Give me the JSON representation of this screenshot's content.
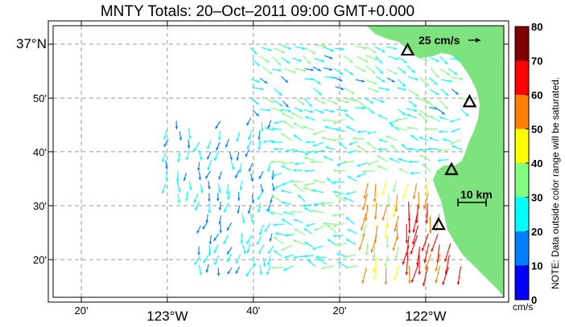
{
  "title": "MNTY Totals: 20–Oct–2011 09:00 GMT+0.000",
  "lat_labels": [
    {
      "text": "37°N",
      "lat": 37.0,
      "big": true
    },
    {
      "text": "50'",
      "lat": 36.833,
      "big": false
    },
    {
      "text": "40'",
      "lat": 36.667,
      "big": false
    },
    {
      "text": "30'",
      "lat": 36.5,
      "big": false
    },
    {
      "text": "20'",
      "lat": 36.333,
      "big": false
    }
  ],
  "lon_labels": [
    {
      "text": "20'",
      "lon": -123.333,
      "big": false
    },
    {
      "text": "123°W",
      "lon": -123.0,
      "big": true
    },
    {
      "text": "40'",
      "lon": -122.667,
      "big": false
    },
    {
      "text": "20'",
      "lon": -122.333,
      "big": false
    },
    {
      "text": "122°W",
      "lon": -122.0,
      "big": true
    }
  ],
  "scale_vector_label": "25 cm/s",
  "scale_bar_label": "10 km",
  "colorbar": {
    "ticks": [
      "0",
      "10",
      "20",
      "30",
      "40",
      "50",
      "60",
      "70",
      "80"
    ],
    "unit": "cm/s",
    "note": "NOTE: Data outside color range will be saturated.",
    "colors": [
      "#0000ff",
      "#0080ff",
      "#00ffff",
      "#80ff80",
      "#ffff00",
      "#ff8000",
      "#ff0000",
      "#800000"
    ]
  },
  "land_color": "#7ee37e",
  "stations": [
    {
      "lat": 36.98,
      "lon": -122.07
    },
    {
      "lat": 36.82,
      "lon": -121.83
    },
    {
      "lat": 36.61,
      "lon": -121.9
    },
    {
      "lat": 36.44,
      "lon": -121.95
    }
  ]
}
